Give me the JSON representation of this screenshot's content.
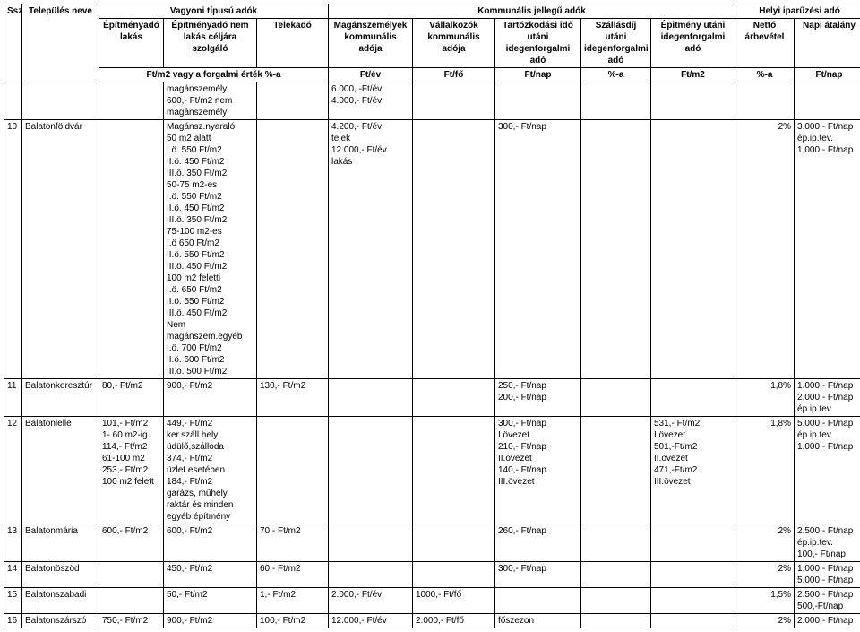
{
  "header": {
    "group_vagyoni": "Vagyoni típusú adók",
    "group_kommunalis": "Kommunális jellegű adók",
    "group_helyi": "Helyi iparűzési adó",
    "ssz": "Ssz.",
    "telep": "Település neve",
    "lakas": "Építményadó lakás",
    "nemlakas": "Építményadó nem lakás céljára szolgáló",
    "telek": "Telekadó",
    "magan": "Magánszemélyek kommunális adója",
    "vall": "Vállalkozók kommunális adója",
    "tart": "Tartózkodási idő utáni idegenforgalmi adó",
    "szall": "Szállásdíj utáni idegenforgalmi adó",
    "epit": "Épitmény utáni idegenforgalmi adó",
    "netto": "Nettó árbevétel",
    "napi": "Napi átalány",
    "sub_ftm2": "Ft/m2 vagy a forgalmi érték %-a",
    "sub_ftev": "Ft/év",
    "sub_ftfo": "Ft/fő",
    "sub_ftnap": "Ft/nap",
    "sub_pct": "%-a",
    "sub_ftm2_2": "Ft/m2",
    "sub_pct2": "%-a",
    "sub_ftnap2": "Ft/nap"
  },
  "rows": {
    "r0": {
      "nemlakas": "magánszemély\n600,- Ft/m2 nem\nmagánszemély",
      "magan": "6.000, -Ft/év\n4.000,- Ft/év"
    },
    "r10": {
      "ssz": "10",
      "telep": "Balatonföldvár",
      "nemlakas": "Magánsz.nyaraló\n50 m2 alatt\nI.ö. 550 Ft/m2\nII.ö. 450 Ft/m2\nIII.ö. 350 Ft/m2\n50-75 m2-es\nI.ö. 550 Ft/m2\nII.ö. 450 Ft/m2\nIII.ö. 350 Ft/m2\n75-100 m2-es\nI.ö 650 Ft/m2\nII.ö. 550 Ft/m2\nIII.ö. 450 Ft/m2\n100 m2 feletti\nI.ö. 650 Ft/m2\nII.ö. 550 Ft/m2\nIII.ö. 450 Ft/m2\nNem magánszem.egyéb\nI.ö. 700 Ft/m2\nII.ö. 600 Ft/m2\nIII.ö. 500 Ft/m2",
      "magan": "4.200,- Ft/év\ntelek\n12.000,- Ft/év\nlakás",
      "tart": "300,- Ft/nap",
      "netto": "2%",
      "napi": "3.000,- Ft/nap\nép.ip.tev.\n1,000,- Ft/nap"
    },
    "r11": {
      "ssz": "11",
      "telep": "Balatonkeresztúr",
      "lakas": "80,- Ft/m2",
      "nemlakas": "900,- Ft/m2",
      "telek": "130,- Ft/m2",
      "tart": "250,- Ft/nap\n200,- Ft/nap",
      "netto": "1,8%",
      "napi": "1.000,- Ft/nap\n2,000,- Ft/nap\nép.ip.tev"
    },
    "r12": {
      "ssz": "12",
      "telep": "Balatonlelle",
      "lakas": "101,- Ft/m2\n1- 60 m2-ig\n114,- Ft/m2\n61-100 m2\n253,- Ft/m2\n100 m2 felett",
      "nemlakas": "449,- Ft/m2\nker.száll.hely\nüdülő,szálloda\n374,- Ft/m2\nüzlet esetében\n184,- Ft/m2\ngarázs, műhely,\nraktár és minden\negyéb építmény",
      "tart": "300,- Ft/nap\nI.övezet\n210,- Ft/nap\nII.övezet\n140,- Ft/nap\nIII.övezet",
      "epit": "531,- Ft/m2\nI.övezet\n501,-Ft/m2\nII.övezet\n471,-Ft/m2\nIII.övezet",
      "netto": "1,8%",
      "napi": "5.000,- Ft/nap\nép.ip.tev\n1,000,- Ft/nap"
    },
    "r13": {
      "ssz": "13",
      "telep": "Balatonmária",
      "lakas": "600,- Ft/m2",
      "nemlakas": "600,- Ft/m2",
      "telek": "70,- Ft/m2",
      "tart": "260,- Ft/nap",
      "netto": "2%",
      "napi": "2,500,- Ft/nap\nép.ip.tev.\n100,- Ft/nap"
    },
    "r14": {
      "ssz": "14",
      "telep": "Balatonöszöd",
      "nemlakas": "450,- Ft/m2",
      "telek": "60,- Ft/m2",
      "tart": "300,- Ft/nap",
      "netto": "2%",
      "napi": "1.000,- Ft/nap\n5.000,- Ft/nap"
    },
    "r15": {
      "ssz": "15",
      "telep": "Balatonszabadi",
      "nemlakas": "50,- Ft/m2",
      "telek": "1,- Ft/m2",
      "magan": "2.000,- Ft/év",
      "vall": "1000,- Ft/fő",
      "netto": "1,5%",
      "napi": "2.500,- Ft/nap\n500,-Ft/nap"
    },
    "r16": {
      "ssz": "16",
      "telep": "Balatonszárszó",
      "lakas": "750,- Ft/m2",
      "nemlakas": "900,- Ft/m2",
      "telek": "100,- Ft/m2",
      "magan": "12.000,- Ft/év",
      "vall": "2.000,- Ft/fő",
      "tart": "főszezon",
      "netto": "2%",
      "napi": "2.000,- Ft/nap"
    }
  }
}
